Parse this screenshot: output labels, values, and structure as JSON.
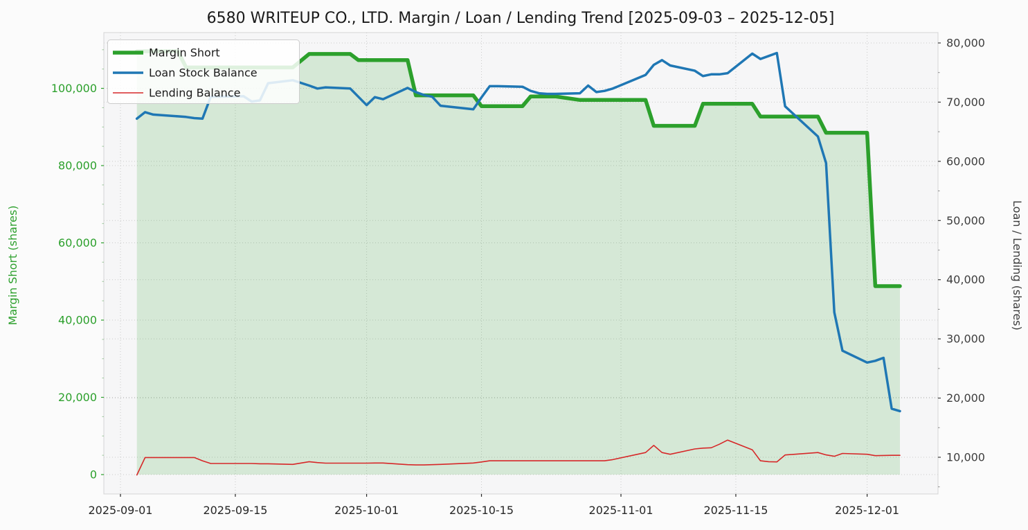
{
  "title": "6580 WRITEUP CO., LTD. Margin / Loan / Lending Trend [2025-09-03 – 2025-12-05]",
  "legend": [
    {
      "label": "Margin Short",
      "color": "#2ca02c"
    },
    {
      "label": "Loan Stock Balance",
      "color": "#1f77b4"
    },
    {
      "label": "Lending Balance",
      "color": "#d62728"
    }
  ],
  "left_axis": {
    "label": "Margin Short (shares)",
    "color": "#2ca02c",
    "tick_values": [
      0,
      20000,
      40000,
      60000,
      80000,
      100000
    ]
  },
  "right_axis": {
    "label": "Loan / Lending (shares)",
    "color": "#3d3d3d",
    "tick_values": [
      10000,
      20000,
      30000,
      40000,
      50000,
      60000,
      70000,
      80000
    ]
  },
  "x_axis": {
    "tick_labels": [
      "2025-09-01",
      "2025-09-15",
      "2025-10-01",
      "2025-10-15",
      "2025-11-01",
      "2025-11-15",
      "2025-12-01"
    ]
  },
  "chart_data": {
    "type": "line",
    "title": "6580 WRITEUP CO., LTD. Margin / Loan / Lending Trend [2025-09-03 – 2025-12-05]",
    "date_range": [
      "2025-09-03",
      "2025-12-05"
    ],
    "grid": "dotted",
    "legend_position": "upper left",
    "left_ylim": [
      0,
      114400
    ],
    "right_ylim": [
      3800,
      81760
    ],
    "x": [
      "2025-09-03",
      "2025-09-04",
      "2025-09-05",
      "2025-09-08",
      "2025-09-09",
      "2025-09-10",
      "2025-09-11",
      "2025-09-12",
      "2025-09-16",
      "2025-09-17",
      "2025-09-18",
      "2025-09-19",
      "2025-09-22",
      "2025-09-24",
      "2025-09-25",
      "2025-09-26",
      "2025-09-29",
      "2025-09-30",
      "2025-10-01",
      "2025-10-02",
      "2025-10-03",
      "2025-10-06",
      "2025-10-07",
      "2025-10-08",
      "2025-10-09",
      "2025-10-10",
      "2025-10-14",
      "2025-10-15",
      "2025-10-16",
      "2025-10-17",
      "2025-10-20",
      "2025-10-21",
      "2025-10-22",
      "2025-10-23",
      "2025-10-24",
      "2025-10-27",
      "2025-10-28",
      "2025-10-29",
      "2025-10-30",
      "2025-10-31",
      "2025-11-04",
      "2025-11-05",
      "2025-11-06",
      "2025-11-07",
      "2025-11-10",
      "2025-11-11",
      "2025-11-12",
      "2025-11-13",
      "2025-11-14",
      "2025-11-17",
      "2025-11-18",
      "2025-11-19",
      "2025-11-20",
      "2025-11-21",
      "2025-11-25",
      "2025-11-26",
      "2025-11-27",
      "2025-11-28",
      "2025-12-01",
      "2025-12-02",
      "2025-12-03",
      "2025-12-04",
      "2025-12-05"
    ],
    "series": [
      {
        "name": "Margin Short",
        "axis": "left",
        "color": "#2ca02c",
        "line_width": 5.5,
        "fill": true,
        "fill_opacity": 0.16,
        "values": [
          109600,
          109600,
          109600,
          109600,
          105400,
          105400,
          105400,
          105400,
          105400,
          105400,
          105400,
          105400,
          105400,
          108900,
          108900,
          108900,
          108900,
          107300,
          107300,
          107300,
          107300,
          107300,
          98200,
          98200,
          98200,
          98200,
          98200,
          95400,
          95400,
          95400,
          95400,
          97900,
          97900,
          97900,
          97900,
          97000,
          97000,
          97000,
          97000,
          97000,
          97000,
          90300,
          90300,
          90300,
          90300,
          96000,
          96000,
          96000,
          96000,
          96000,
          92700,
          92700,
          92700,
          92700,
          92700,
          88500,
          88500,
          88500,
          88500,
          48800,
          48800,
          48800,
          48800
        ]
      },
      {
        "name": "Loan Stock Balance",
        "axis": "right",
        "color": "#1f77b4",
        "line_width": 3.5,
        "fill": false,
        "values": [
          67200,
          68300,
          67900,
          67600,
          67500,
          67300,
          67200,
          70900,
          71000,
          70100,
          70300,
          73200,
          73700,
          72800,
          72300,
          72500,
          72300,
          70900,
          69500,
          70850,
          70500,
          72400,
          71700,
          71200,
          70900,
          69400,
          68800,
          70800,
          72700,
          72700,
          72600,
          71900,
          71500,
          71400,
          71400,
          71500,
          72800,
          71700,
          71900,
          72300,
          74600,
          76300,
          77100,
          76200,
          75300,
          74400,
          74700,
          74700,
          74900,
          78200,
          77300,
          77800,
          78300,
          69300,
          64200,
          59700,
          34500,
          28000,
          26000,
          26300,
          26800,
          18200,
          17800
        ]
      },
      {
        "name": "Lending Balance",
        "axis": "right",
        "color": "#d62728",
        "line_width": 1.6,
        "fill": false,
        "values": [
          7000,
          9950,
          9950,
          9950,
          9950,
          9950,
          9400,
          8950,
          8950,
          8950,
          8900,
          8900,
          8800,
          9250,
          9100,
          9000,
          9000,
          9000,
          9000,
          9030,
          9030,
          8750,
          8700,
          8700,
          8750,
          8800,
          9030,
          9200,
          9400,
          9400,
          9400,
          9400,
          9400,
          9400,
          9400,
          9400,
          9400,
          9400,
          9400,
          9600,
          10800,
          12000,
          10800,
          10500,
          11400,
          11550,
          11600,
          12200,
          12900,
          11270,
          9400,
          9250,
          9220,
          10390,
          10800,
          10400,
          10160,
          10640,
          10500,
          10270,
          10300,
          10330,
          10330
        ]
      }
    ]
  }
}
